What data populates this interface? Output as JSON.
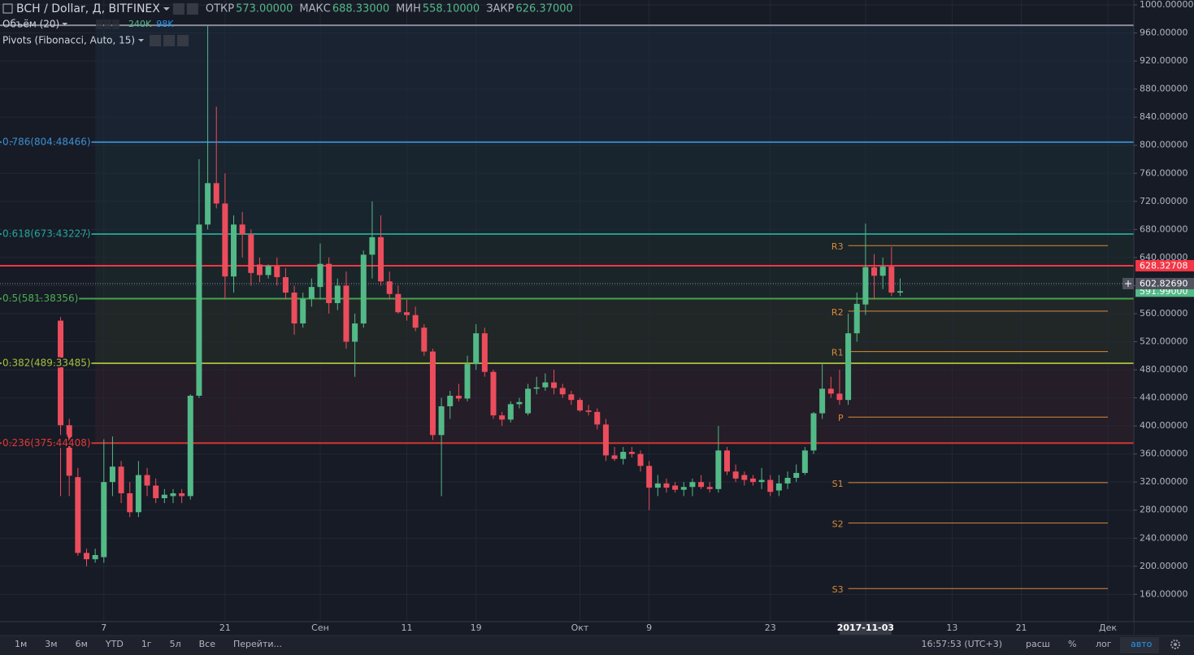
{
  "chart_data": {
    "type": "candlestick",
    "header": {
      "symbol": "BCH / Dollar, Д, BITFINEX",
      "ohlc": [
        {
          "label": "ОТКР",
          "value": "573.00000"
        },
        {
          "label": "МАКС",
          "value": "688.33000"
        },
        {
          "label": "МИН",
          "value": "558.10000"
        },
        {
          "label": "ЗАКР",
          "value": "626.37000"
        }
      ],
      "volume_label": "Объём (20)",
      "volume_values": [
        {
          "text": "240K",
          "color": "#53b987"
        },
        {
          "text": "98K",
          "color": "#2196f3"
        }
      ],
      "pivots_label": "Pivots (Fibonacci, Auto, 15)"
    },
    "x": [
      "2017-08-02",
      "2017-08-03",
      "2017-08-04",
      "2017-08-05",
      "2017-08-06",
      "2017-08-07",
      "2017-08-08",
      "2017-08-09",
      "2017-08-10",
      "2017-08-11",
      "2017-08-12",
      "2017-08-13",
      "2017-08-14",
      "2017-08-15",
      "2017-08-16",
      "2017-08-17",
      "2017-08-18",
      "2017-08-19",
      "2017-08-20",
      "2017-08-21",
      "2017-08-22",
      "2017-08-23",
      "2017-08-24",
      "2017-08-25",
      "2017-08-26",
      "2017-08-27",
      "2017-08-28",
      "2017-08-29",
      "2017-08-30",
      "2017-08-31",
      "2017-09-01",
      "2017-09-02",
      "2017-09-03",
      "2017-09-04",
      "2017-09-05",
      "2017-09-06",
      "2017-09-07",
      "2017-09-08",
      "2017-09-09",
      "2017-09-10",
      "2017-09-11",
      "2017-09-12",
      "2017-09-13",
      "2017-09-14",
      "2017-09-15",
      "2017-09-16",
      "2017-09-17",
      "2017-09-18",
      "2017-09-19",
      "2017-09-20",
      "2017-09-21",
      "2017-09-22",
      "2017-09-23",
      "2017-09-24",
      "2017-09-25",
      "2017-09-26",
      "2017-09-27",
      "2017-09-28",
      "2017-09-29",
      "2017-09-30",
      "2017-10-01",
      "2017-10-02",
      "2017-10-03",
      "2017-10-04",
      "2017-10-05",
      "2017-10-06",
      "2017-10-07",
      "2017-10-08",
      "2017-10-09",
      "2017-10-10",
      "2017-10-11",
      "2017-10-12",
      "2017-10-13",
      "2017-10-14",
      "2017-10-15",
      "2017-10-16",
      "2017-10-17",
      "2017-10-18",
      "2017-10-19",
      "2017-10-20",
      "2017-10-21",
      "2017-10-22",
      "2017-10-23",
      "2017-10-24",
      "2017-10-25",
      "2017-10-26",
      "2017-10-27",
      "2017-10-28",
      "2017-10-29",
      "2017-10-30",
      "2017-10-31",
      "2017-11-01",
      "2017-11-02",
      "2017-11-03",
      "2017-11-04",
      "2017-11-05",
      "2017-11-06",
      "2017-11-07"
    ],
    "open": [
      550,
      401,
      327,
      219,
      210,
      213,
      320,
      342,
      304,
      277,
      330,
      315,
      297,
      300,
      304,
      300,
      443,
      687,
      746,
      717,
      613,
      687,
      673,
      630,
      615,
      628,
      612,
      590,
      546,
      581,
      598,
      631,
      575,
      600,
      520,
      546,
      644,
      669,
      606,
      588,
      562,
      558,
      540,
      506,
      387,
      428,
      443,
      439,
      488,
      532,
      477,
      415,
      409,
      431,
      418,
      453,
      455,
      462,
      454,
      445,
      437,
      422,
      420,
      402,
      358,
      353,
      363,
      360,
      343,
      312,
      318,
      315,
      309,
      313,
      320,
      313,
      310,
      365,
      335,
      330,
      325,
      320,
      323,
      308,
      318,
      326,
      333,
      365,
      418,
      453,
      446,
      437,
      532,
      573,
      626,
      614,
      627,
      590
    ],
    "high": [
      555,
      410,
      340,
      225,
      225,
      381,
      385,
      350,
      320,
      350,
      340,
      325,
      310,
      310,
      310,
      445,
      780,
      970,
      855,
      760,
      700,
      705,
      680,
      640,
      630,
      640,
      625,
      600,
      590,
      610,
      660,
      640,
      610,
      620,
      560,
      650,
      720,
      700,
      620,
      600,
      580,
      570,
      545,
      510,
      440,
      450,
      460,
      500,
      545,
      540,
      480,
      420,
      435,
      440,
      460,
      470,
      475,
      480,
      460,
      450,
      440,
      430,
      425,
      410,
      370,
      370,
      370,
      365,
      350,
      330,
      325,
      320,
      320,
      325,
      330,
      320,
      400,
      370,
      345,
      335,
      330,
      340,
      330,
      330,
      335,
      345,
      370,
      420,
      490,
      470,
      480,
      560,
      590,
      688.33,
      645,
      640,
      655,
      610
    ],
    "low": [
      300,
      300,
      215,
      200,
      205,
      205,
      300,
      290,
      270,
      270,
      300,
      290,
      290,
      290,
      290,
      295,
      440,
      680,
      710,
      580,
      590,
      640,
      600,
      605,
      610,
      600,
      580,
      530,
      540,
      570,
      580,
      560,
      565,
      510,
      470,
      540,
      610,
      600,
      580,
      560,
      550,
      535,
      500,
      380,
      300,
      410,
      435,
      435,
      480,
      470,
      410,
      400,
      405,
      425,
      415,
      445,
      450,
      445,
      440,
      430,
      420,
      415,
      395,
      350,
      350,
      345,
      355,
      335,
      280,
      300,
      305,
      305,
      300,
      300,
      310,
      305,
      305,
      330,
      320,
      315,
      315,
      310,
      300,
      300,
      310,
      320,
      330,
      360,
      410,
      440,
      430,
      430,
      520,
      558.1,
      580,
      595,
      585,
      585
    ],
    "close": [
      401,
      329,
      219,
      210,
      216,
      320,
      342,
      304,
      277,
      330,
      315,
      297,
      302,
      304,
      300,
      443,
      687,
      746,
      717,
      613,
      687,
      673,
      618,
      615,
      628,
      612,
      590,
      546,
      581,
      598,
      631,
      575,
      600,
      520,
      546,
      644,
      669,
      606,
      588,
      562,
      558,
      540,
      506,
      387,
      428,
      443,
      439,
      488,
      532,
      477,
      415,
      409,
      431,
      434,
      453,
      455,
      462,
      454,
      445,
      437,
      422,
      420,
      402,
      358,
      353,
      363,
      360,
      343,
      312,
      318,
      312,
      309,
      313,
      320,
      313,
      310,
      365,
      335,
      325,
      323,
      320,
      323,
      306,
      318,
      326,
      333,
      365,
      418,
      453,
      446,
      437,
      532,
      574,
      626.37,
      614,
      627,
      590,
      591.99
    ],
    "up_color": "#53b987",
    "down_color": "#eb4d5c",
    "xlim": [
      "2017-07-26",
      "2017-12-04"
    ],
    "xticks": [
      {
        "value": "2017-08-07",
        "label": "7"
      },
      {
        "value": "2017-08-21",
        "label": "21"
      },
      {
        "value": "2017-09-01",
        "label": "Сен"
      },
      {
        "value": "2017-09-11",
        "label": "11"
      },
      {
        "value": "2017-09-19",
        "label": "19"
      },
      {
        "value": "2017-10-01",
        "label": "Окт"
      },
      {
        "value": "2017-10-09",
        "label": "9"
      },
      {
        "value": "2017-10-23",
        "label": "23"
      },
      {
        "value": "2017-11-03",
        "label": "2017-11-03"
      },
      {
        "value": "2017-11-13",
        "label": "13"
      },
      {
        "value": "2017-11-21",
        "label": "21"
      },
      {
        "value": "2017-12-01",
        "label": "Дек"
      }
    ],
    "highlight_xtick": 8,
    "ylim": [
      121,
      1007
    ],
    "yticks": [
      {
        "value": 1000,
        "label": "1000.00000"
      },
      {
        "value": 960,
        "label": "960.00000"
      },
      {
        "value": 920,
        "label": "920.00000"
      },
      {
        "value": 880,
        "label": "880.00000"
      },
      {
        "value": 840,
        "label": "840.00000"
      },
      {
        "value": 800,
        "label": "800.00000"
      },
      {
        "value": 760,
        "label": "760.00000"
      },
      {
        "value": 720,
        "label": "720.00000"
      },
      {
        "value": 680,
        "label": "680.00000"
      },
      {
        "value": 640,
        "label": "640.00000"
      },
      {
        "value": 600,
        "label": "600.00000"
      },
      {
        "value": 560,
        "label": "560.00000"
      },
      {
        "value": 520,
        "label": "520.00000"
      },
      {
        "value": 480,
        "label": "480.00000"
      },
      {
        "value": 440,
        "label": "440.00000"
      },
      {
        "value": 400,
        "label": "400.00000"
      },
      {
        "value": 360,
        "label": "360.00000"
      },
      {
        "value": 320,
        "label": "320.00000"
      },
      {
        "value": 280,
        "label": "280.00000"
      },
      {
        "value": 240,
        "label": "240.00000"
      },
      {
        "value": 200,
        "label": "200.00000"
      },
      {
        "value": 160,
        "label": "160.00000"
      }
    ],
    "grid": true,
    "fib_start": "2017-08-06",
    "fib_levels": [
      {
        "value": 971,
        "color": "#9598a1"
      },
      {
        "value": 804.48466,
        "label": "0.786(804.48466)",
        "color": "#3d8fd1"
      },
      {
        "value": 673.43227,
        "label": "0.618(673.43227)",
        "color": "#26a69a"
      },
      {
        "value": 581.38356,
        "label": "0.5(581.38356)",
        "color": "#4caf50"
      },
      {
        "value": 489.33485,
        "label": "0.382(489.33485)",
        "color": "#a5c23a"
      },
      {
        "value": 375.44408,
        "label": "0.236(375.44408)",
        "color": "#e53935"
      }
    ],
    "pivots": {
      "start": "2017-11-01",
      "end": "2017-12-01",
      "color": "#d98a3b",
      "levels": [
        {
          "name": "R3",
          "value": 657
        },
        {
          "name": "R2",
          "value": 563.6
        },
        {
          "name": "R1",
          "value": 506
        },
        {
          "name": "P",
          "value": 412.6
        },
        {
          "name": "S1",
          "value": 319.2
        },
        {
          "name": "S2",
          "value": 261.6
        },
        {
          "name": "S3",
          "value": 168.2
        }
      ]
    },
    "price_lines": [
      {
        "value": 628.32708,
        "label": "628.32708",
        "color": "#f23645",
        "style": "solid"
      },
      {
        "value": 591.99,
        "label": "591.99000",
        "color": "#53b987",
        "style": "none"
      },
      {
        "value": 602.8269,
        "label": "602.82690",
        "color": "#50535e",
        "style": "dotted"
      }
    ],
    "toolbar": {
      "periods": [
        "1м",
        "3м",
        "6м",
        "YTD",
        "1г",
        "5л",
        "Все"
      ],
      "goto": "Перейти...",
      "time": "16:57:53 (UTC+3)",
      "options": [
        "расш",
        "%",
        "лог",
        "авто"
      ]
    }
  }
}
